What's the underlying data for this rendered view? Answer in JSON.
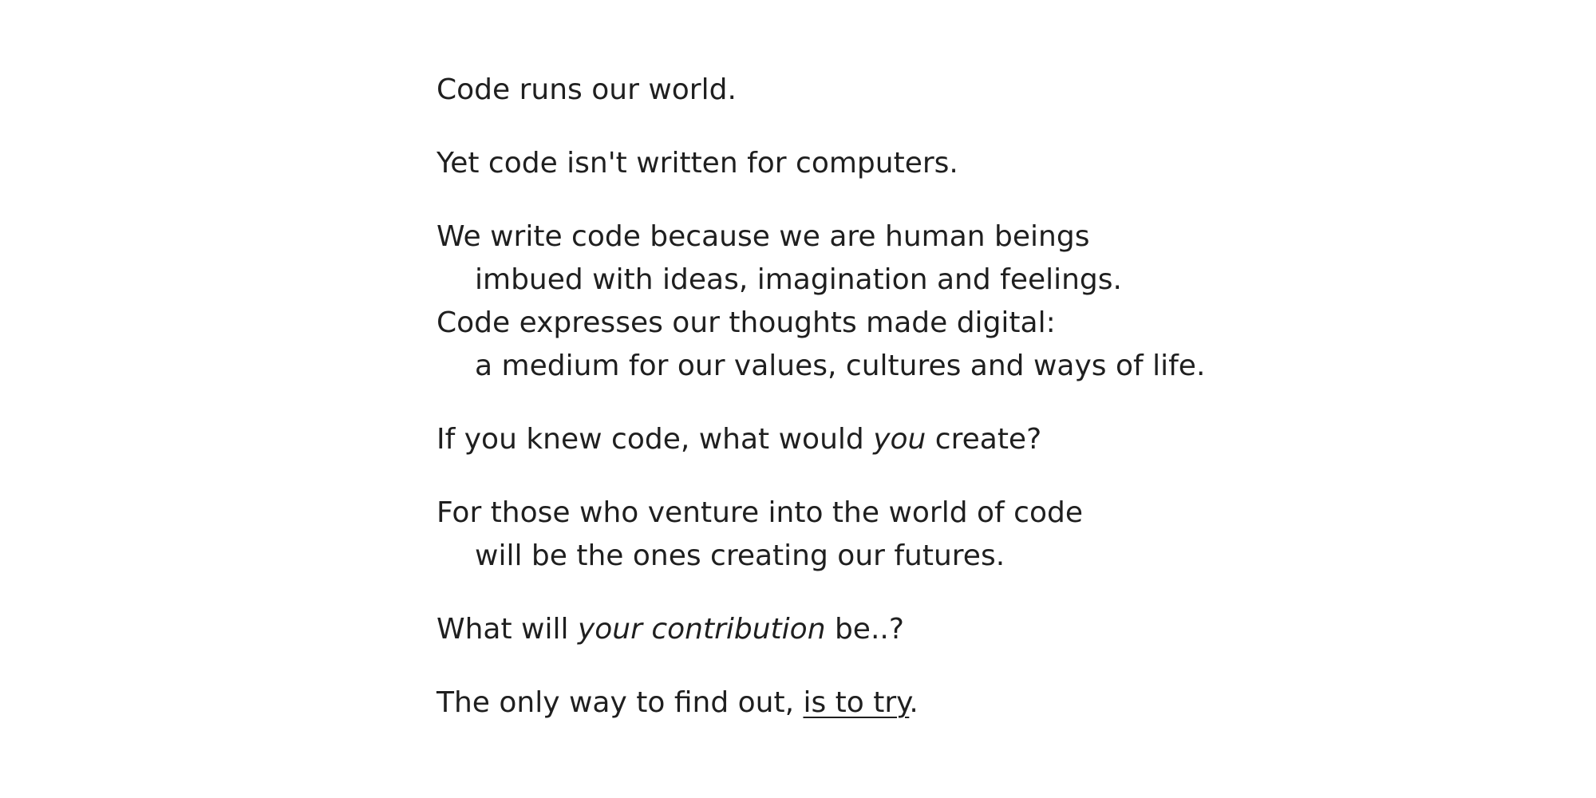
{
  "poem": {
    "stanzas": [
      {
        "lines": [
          "Code runs our world."
        ]
      },
      {
        "lines": [
          "Yet code isn't written for computers."
        ]
      },
      {
        "lines": [
          "We write code because we are human beings",
          "imbued with ideas, imagination and feelings.",
          "Code expresses our thoughts made digital:",
          "a medium for our values, cultures and ways of life."
        ]
      },
      {
        "before": "If you knew code, what would ",
        "emphasis": "you",
        "after": " create?"
      },
      {
        "lines": [
          "For those who venture into the world of code",
          "will be the ones creating our futures."
        ]
      },
      {
        "before": "What will ",
        "emphasis": "your contribution",
        "after": " be..?"
      },
      {
        "before": "The only way to find out, ",
        "link": "is to try",
        "after": "."
      }
    ]
  }
}
